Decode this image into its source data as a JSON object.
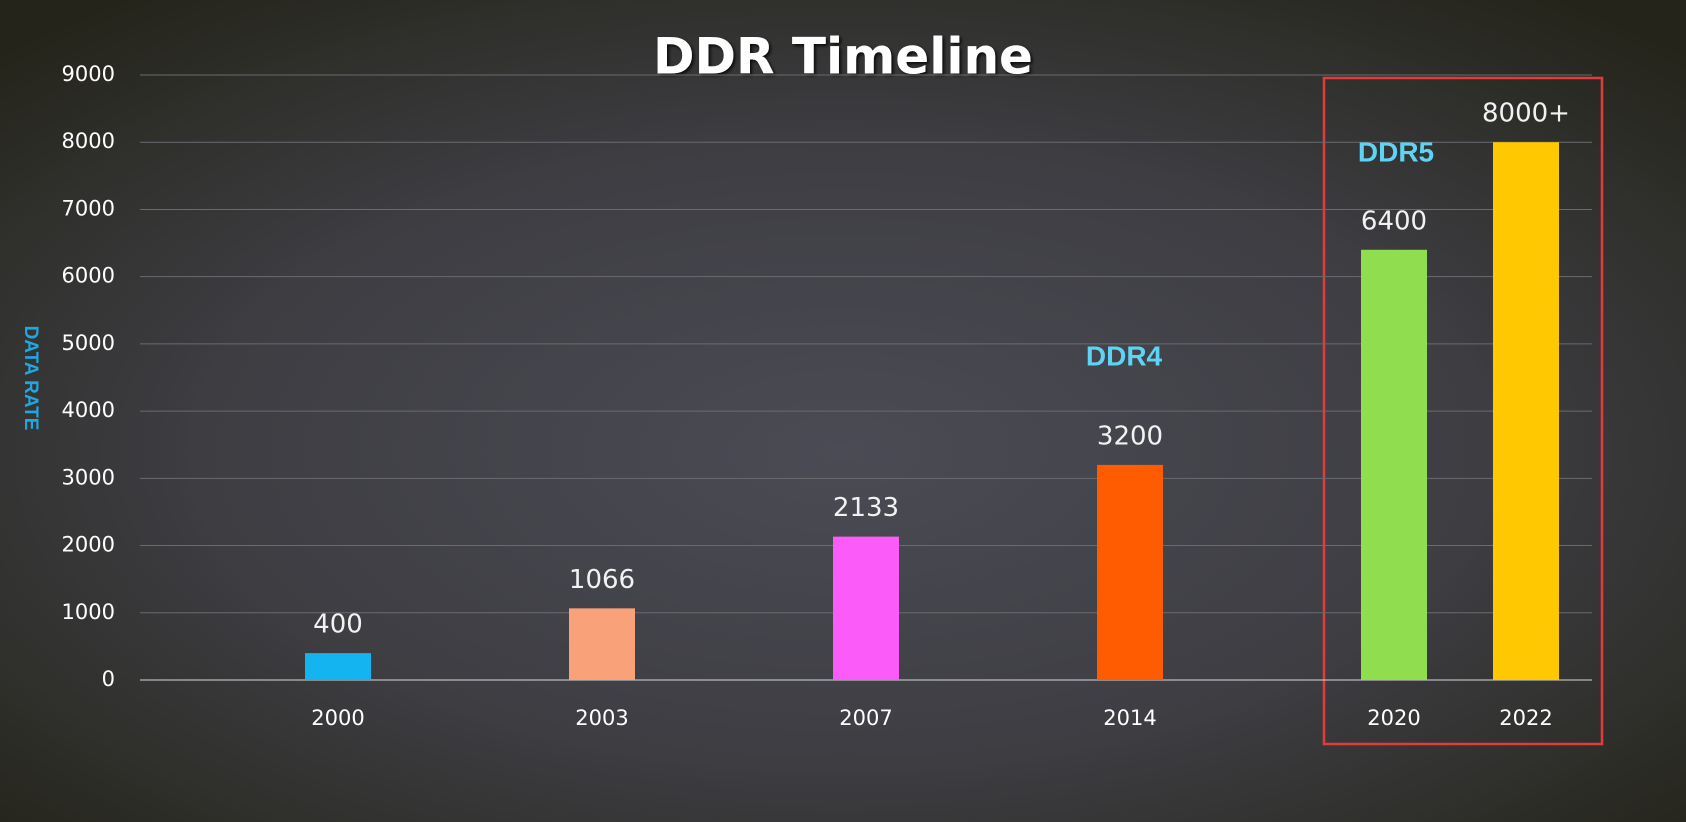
{
  "chart_data": {
    "type": "bar",
    "title": "DDR Timeline",
    "y_label": "DATA RATE",
    "categories": [
      null,
      "2000",
      null,
      "2003",
      null,
      "2007",
      null,
      "2014",
      null,
      "2020",
      "2022"
    ],
    "values": [
      null,
      400,
      null,
      1066,
      null,
      2133,
      null,
      3200,
      null,
      6400,
      8000
    ],
    "value_labels": [
      null,
      "400",
      null,
      "1066",
      null,
      "2133",
      null,
      "3200",
      null,
      "6400",
      "8000+"
    ],
    "colors": [
      null,
      "#14b4f0",
      null,
      "#f9a27a",
      null,
      "#fb5cf9",
      null,
      "#ff5b00",
      null,
      "#90dd50",
      null
    ],
    "last_color": "#ffc800",
    "ylim": [
      0,
      9000
    ],
    "yticks": [
      0,
      1000,
      2000,
      3000,
      4000,
      5000,
      6000,
      7000,
      8000,
      9000
    ],
    "grid": true,
    "annotations": [
      "DDR4",
      "DDR5"
    ]
  }
}
